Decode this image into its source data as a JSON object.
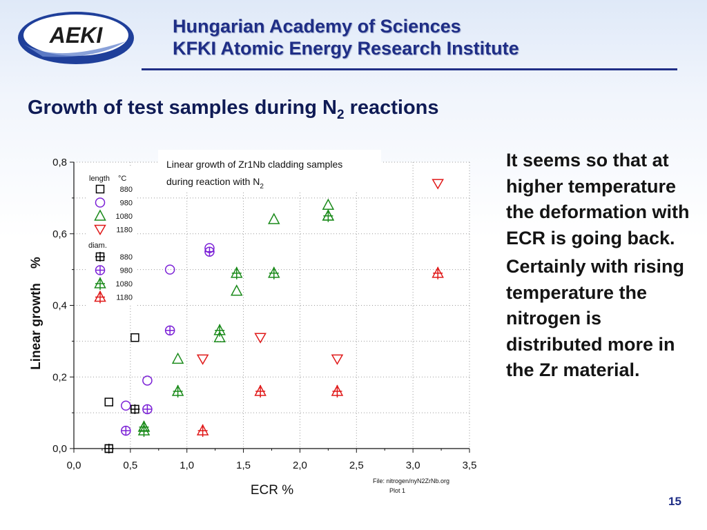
{
  "header": {
    "logo_text": "AEKI",
    "line1": "Hungarian Academy of Sciences",
    "line2": "KFKI Atomic Energy Research Institute"
  },
  "slide": {
    "title_main": "Growth of test samples during N",
    "title_sub": "2",
    "title_tail": " reactions",
    "page_number": "15"
  },
  "side_text": {
    "p1": "It seems so that at higher temperature the deformation with ECR is going back.",
    "p2": "Certainly with rising temperature the nitrogen is distributed more in the Zr material."
  },
  "chart_data": {
    "type": "scatter",
    "xlabel": "ECR %",
    "ylabel": "Linear growth    %",
    "xlim": [
      0.0,
      3.5
    ],
    "ylim": [
      0.0,
      0.8
    ],
    "x_ticks": [
      "0,0",
      "0,5",
      "1,0",
      "1,5",
      "2,0",
      "2,5",
      "3,0",
      "3,5"
    ],
    "y_ticks": [
      "0,0",
      "0,2",
      "0,4",
      "0,6",
      "0,8"
    ],
    "grid": true,
    "annotation_line1": "Linear growth of Zr1Nb cladding samples",
    "annotation_line2": "during reaction with N",
    "annotation_sub": "2",
    "file_note_line1": "File: nitrogen/nyN2ZrNb.org",
    "file_note_line2": "Plot 1",
    "legend": {
      "group1": "length",
      "unit": "°C",
      "group2": "diam."
    },
    "series": [
      {
        "name": "880",
        "group": "length",
        "marker": "square",
        "color": "#000000",
        "points": [
          [
            0.31,
            0.0
          ],
          [
            0.31,
            0.13
          ],
          [
            0.54,
            0.31
          ]
        ]
      },
      {
        "name": "980",
        "group": "length",
        "marker": "circle",
        "color": "#7a1fd6",
        "points": [
          [
            0.46,
            0.12
          ],
          [
            0.65,
            0.19
          ],
          [
            0.85,
            0.5
          ],
          [
            1.2,
            0.56
          ]
        ]
      },
      {
        "name": "1080",
        "group": "length",
        "marker": "triangle-up",
        "color": "#1a8a1a",
        "points": [
          [
            0.62,
            0.06
          ],
          [
            0.92,
            0.25
          ],
          [
            1.29,
            0.31
          ],
          [
            1.44,
            0.44
          ],
          [
            1.77,
            0.64
          ],
          [
            2.25,
            0.65
          ],
          [
            2.25,
            0.68
          ]
        ]
      },
      {
        "name": "1180",
        "group": "length",
        "marker": "triangle-down",
        "color": "#e01818",
        "points": [
          [
            1.14,
            0.25
          ],
          [
            1.65,
            0.31
          ],
          [
            2.33,
            0.25
          ],
          [
            3.22,
            0.74
          ]
        ]
      },
      {
        "name": "880",
        "group": "diam.",
        "marker": "square-cross",
        "color": "#000000",
        "points": [
          [
            0.31,
            0.0
          ],
          [
            0.54,
            0.11
          ]
        ]
      },
      {
        "name": "980",
        "group": "diam.",
        "marker": "circle-cross",
        "color": "#7a1fd6",
        "points": [
          [
            0.46,
            0.05
          ],
          [
            0.65,
            0.11
          ],
          [
            0.85,
            0.33
          ],
          [
            1.2,
            0.55
          ]
        ]
      },
      {
        "name": "1080",
        "group": "diam.",
        "marker": "triangle-cross",
        "color": "#1a8a1a",
        "points": [
          [
            0.62,
            0.05
          ],
          [
            0.62,
            0.06
          ],
          [
            0.92,
            0.16
          ],
          [
            1.29,
            0.33
          ],
          [
            1.44,
            0.49
          ],
          [
            1.77,
            0.49
          ],
          [
            2.25,
            0.65
          ]
        ]
      },
      {
        "name": "1180",
        "group": "diam.",
        "marker": "triangle-cross",
        "color": "#e01818",
        "points": [
          [
            1.14,
            0.05
          ],
          [
            1.65,
            0.16
          ],
          [
            2.33,
            0.16
          ],
          [
            3.22,
            0.49
          ]
        ]
      }
    ]
  }
}
